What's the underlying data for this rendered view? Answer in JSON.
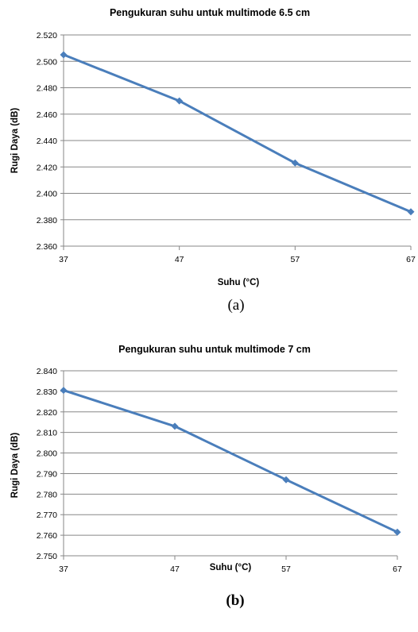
{
  "chart_data": [
    {
      "type": "line",
      "title": "Pengukuran suhu untuk multimode 6.5 cm",
      "xlabel": "Suhu (°C)",
      "ylabel": "Rugi Daya (dB)",
      "x": [
        37,
        47,
        57,
        67
      ],
      "x_tick_labels": [
        "37",
        "47",
        "57",
        "67"
      ],
      "y_tick_labels": [
        "2.360",
        "2.380",
        "2.400",
        "2.420",
        "2.440",
        "2.460",
        "2.480",
        "2.500",
        "2.520"
      ],
      "ylim": [
        2.36,
        2.52
      ],
      "xlim": [
        37,
        67
      ],
      "grid": "horizontal",
      "series": [
        {
          "values": [
            2.505,
            2.47,
            2.423,
            2.386
          ],
          "color": "#4a7ebb"
        }
      ],
      "caption": "(a)"
    },
    {
      "type": "line",
      "title": "Pengukuran suhu untuk multimode 7 cm",
      "xlabel": "Suhu (°C)",
      "ylabel": "Rugi Daya (dB)",
      "x": [
        37,
        47,
        57,
        67
      ],
      "x_tick_labels": [
        "37",
        "47",
        "57",
        "67"
      ],
      "y_tick_labels": [
        "2.750",
        "2.760",
        "2.770",
        "2.780",
        "2.790",
        "2.800",
        "2.810",
        "2.820",
        "2.830",
        "2.840"
      ],
      "ylim": [
        2.75,
        2.84
      ],
      "xlim": [
        37,
        67
      ],
      "grid": "horizontal",
      "series": [
        {
          "values": [
            2.8305,
            2.813,
            2.787,
            2.7615
          ],
          "color": "#4a7ebb"
        }
      ],
      "caption": "(b)"
    }
  ]
}
